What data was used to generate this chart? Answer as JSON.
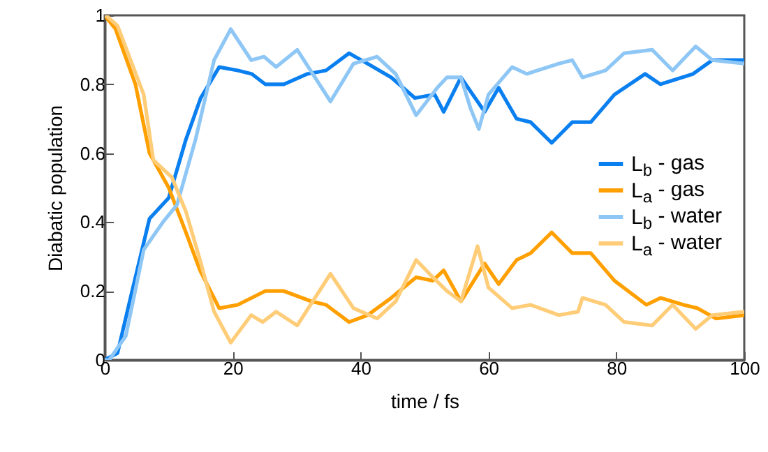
{
  "chart_data": {
    "type": "line",
    "xlabel": "time / fs",
    "ylabel": "Diabatic population",
    "xlim": [
      0,
      100
    ],
    "ylim": [
      0,
      1
    ],
    "xticks": [
      0,
      20,
      40,
      60,
      80,
      100
    ],
    "yticks": [
      {
        "value": 0,
        "label": "0"
      },
      0.2,
      0.4,
      0.6,
      0.8,
      {
        "value": 1,
        "label": "1"
      }
    ],
    "grid": false,
    "legend": "right",
    "line_style": "solid",
    "marker": "none",
    "series": [
      {
        "name": "L$_{b}$ - gas",
        "color": "#0a7ff0",
        "x": [
          0,
          2,
          3.9,
          7,
          10,
          12.7,
          15,
          17.9,
          20.8,
          23,
          25.1,
          28,
          31.7,
          34.6,
          38.2,
          41.1,
          44.8,
          48.5,
          51.6,
          53,
          55.7,
          59.4,
          61.6,
          64.4,
          66.6,
          69.9,
          73.1,
          76,
          79.7,
          84.5,
          86.9,
          92,
          95,
          100
        ],
        "values": [
          0,
          0.02,
          0.17,
          0.41,
          0.47,
          0.64,
          0.76,
          0.85,
          0.84,
          0.83,
          0.8,
          0.8,
          0.83,
          0.84,
          0.89,
          0.86,
          0.82,
          0.76,
          0.77,
          0.72,
          0.82,
          0.72,
          0.79,
          0.7,
          0.69,
          0.63,
          0.69,
          0.69,
          0.77,
          0.83,
          0.8,
          0.83,
          0.87,
          0.87
        ]
      },
      {
        "name": "L$_{a}$ - gas",
        "color": "#ff9f00",
        "x": [
          0,
          1.7,
          4.8,
          7,
          10,
          12.7,
          14.9,
          17.9,
          20.8,
          25.1,
          28,
          32.3,
          34.6,
          38.2,
          41.1,
          44.8,
          48.7,
          51.3,
          53,
          55.7,
          59.4,
          61.6,
          64.4,
          66.6,
          69.9,
          73.1,
          76,
          79.7,
          84.7,
          86.9,
          90.5,
          92.7,
          95.6,
          100
        ],
        "values": [
          1,
          0.96,
          0.8,
          0.6,
          0.5,
          0.37,
          0.26,
          0.15,
          0.16,
          0.2,
          0.2,
          0.17,
          0.16,
          0.11,
          0.13,
          0.18,
          0.24,
          0.23,
          0.26,
          0.17,
          0.28,
          0.22,
          0.29,
          0.31,
          0.37,
          0.31,
          0.31,
          0.23,
          0.16,
          0.18,
          0.16,
          0.15,
          0.12,
          0.13
        ]
      },
      {
        "name": "L$_{b}$ - water",
        "color": "#8ec7f5",
        "x": [
          0,
          0.7,
          3.3,
          6.1,
          9.1,
          11.3,
          14.2,
          17.1,
          19.7,
          22.9,
          24.9,
          26.8,
          30.1,
          35.3,
          38.9,
          42.6,
          45.5,
          48.7,
          52,
          53.5,
          55.7,
          57.2,
          58.5,
          60,
          63.7,
          66,
          71,
          73.1,
          74.7,
          78.3,
          81.2,
          85.6,
          88.8,
          92.4,
          95,
          100
        ],
        "values": [
          0,
          0,
          0.07,
          0.32,
          0.4,
          0.45,
          0.64,
          0.87,
          0.96,
          0.87,
          0.88,
          0.85,
          0.9,
          0.75,
          0.86,
          0.88,
          0.83,
          0.71,
          0.79,
          0.82,
          0.82,
          0.73,
          0.67,
          0.77,
          0.85,
          0.83,
          0.86,
          0.87,
          0.82,
          0.84,
          0.89,
          0.9,
          0.84,
          0.91,
          0.87,
          0.86
        ]
      },
      {
        "name": "L$_{a}$ - water",
        "color": "#ffcc77",
        "x": [
          0,
          0.2,
          2,
          6.1,
          7.6,
          10.5,
          12.7,
          14.9,
          17.1,
          19.7,
          22.9,
          24.7,
          26.8,
          30.1,
          35.3,
          38.9,
          42.6,
          45.5,
          48.7,
          51.3,
          53.5,
          55.7,
          58.3,
          60,
          63.7,
          66.6,
          71,
          74,
          74.7,
          78.3,
          81.2,
          85.6,
          88.8,
          92.4,
          95,
          100
        ],
        "values": [
          1,
          1,
          0.97,
          0.77,
          0.58,
          0.53,
          0.43,
          0.29,
          0.14,
          0.05,
          0.13,
          0.11,
          0.14,
          0.1,
          0.25,
          0.15,
          0.12,
          0.17,
          0.29,
          0.24,
          0.2,
          0.17,
          0.33,
          0.21,
          0.15,
          0.16,
          0.13,
          0.14,
          0.18,
          0.16,
          0.11,
          0.1,
          0.16,
          0.09,
          0.13,
          0.14
        ]
      }
    ]
  }
}
